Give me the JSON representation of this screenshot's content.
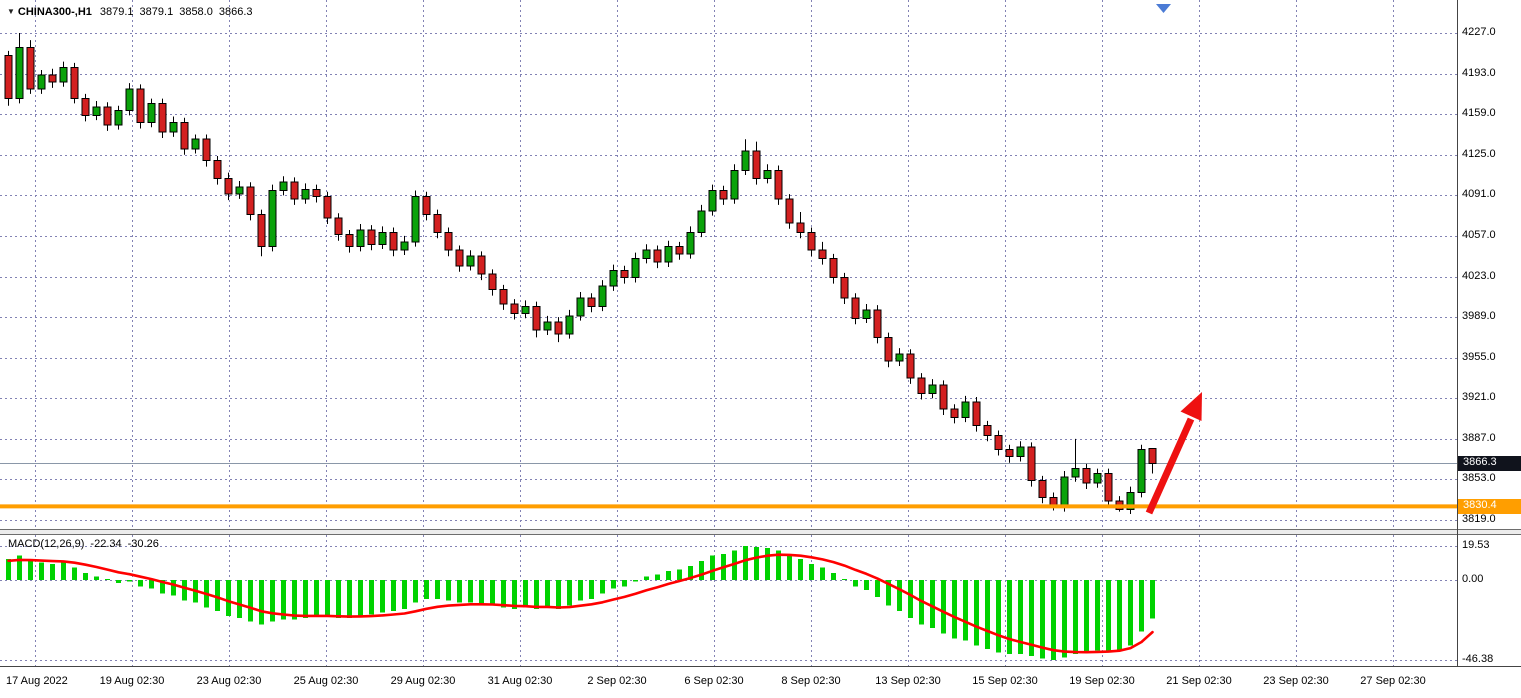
{
  "header": {
    "dropdown_icon": "▼",
    "symbol": "CHINA300-,H1",
    "open": "3879.1",
    "high": "3879.1",
    "low": "3858.0",
    "close": "3866.3"
  },
  "price_axis": {
    "current_price_badge": "3866.3",
    "orange_level_badge": "3830.4"
  },
  "macd_panel": {
    "label": "MACD(12,26,9)",
    "macd_value": "-22.34",
    "signal_value": "-30.26"
  },
  "colors": {
    "grid": "#8282b4",
    "bull": "#0aa20a",
    "bear": "#d32020",
    "wick": "#000000",
    "macd_hist": "#00d200",
    "macd_signal": "#ff0000",
    "orange_line": "#ff9e00",
    "current_price_line": "#8a97a8",
    "arrow": "#ee1111",
    "shift_marker": "#4b7bd5",
    "badge_current_bg": "#10131c",
    "badge_orange_bg": "#ff9e00",
    "separator": "#6d6d6d"
  },
  "chart_data": [
    {
      "type": "candlestick",
      "title": "CHINA300-,H1",
      "ylim": [
        3811,
        4255
      ],
      "yticks": [
        4227,
        4193,
        4159,
        4125,
        4091,
        4057,
        4023,
        3989,
        3955,
        3921,
        3887,
        3853,
        3819
      ],
      "ytick_labels": [
        "4227.0",
        "4193.0",
        "4159.0",
        "4125.0",
        "4091.0",
        "4057.0",
        "4023.0",
        "3989.0",
        "3955.0",
        "3921.0",
        "3887.0",
        "3853.0",
        "3819.0"
      ],
      "x_tick_labels": [
        "17 Aug 2022",
        "19 Aug 02:30",
        "23 Aug 02:30",
        "25 Aug 02:30",
        "29 Aug 02:30",
        "31 Aug 02:30",
        "2 Sep 02:30",
        "6 Sep 02:30",
        "8 Sep 02:30",
        "13 Sep 02:30",
        "15 Sep 02:30",
        "19 Sep 02:30",
        "21 Sep 02:30",
        "23 Sep 02:30",
        "27 Sep 02:30"
      ],
      "current_price": 3866.3,
      "support_line": 3830.4,
      "candles": [
        [
          4208,
          4212,
          4166,
          4172
        ],
        [
          4172,
          4227,
          4168,
          4215
        ],
        [
          4215,
          4221,
          4176,
          4180
        ],
        [
          4180,
          4196,
          4176,
          4192
        ],
        [
          4192,
          4197,
          4181,
          4186
        ],
        [
          4186,
          4203,
          4182,
          4198
        ],
        [
          4198,
          4202,
          4168,
          4172
        ],
        [
          4172,
          4176,
          4153,
          4158
        ],
        [
          4158,
          4170,
          4154,
          4165
        ],
        [
          4165,
          4169,
          4145,
          4150
        ],
        [
          4150,
          4166,
          4146,
          4162
        ],
        [
          4162,
          4185,
          4158,
          4180
        ],
        [
          4180,
          4184,
          4147,
          4152
        ],
        [
          4152,
          4172,
          4148,
          4168
        ],
        [
          4168,
          4172,
          4139,
          4144
        ],
        [
          4144,
          4157,
          4140,
          4152
        ],
        [
          4152,
          4156,
          4125,
          4130
        ],
        [
          4130,
          4142,
          4126,
          4138
        ],
        [
          4138,
          4142,
          4115,
          4120
        ],
        [
          4120,
          4124,
          4100,
          4105
        ],
        [
          4105,
          4110,
          4087,
          4092
        ],
        [
          4092,
          4103,
          4088,
          4098
        ],
        [
          4098,
          4102,
          4070,
          4075
        ],
        [
          4075,
          4079,
          4040,
          4048
        ],
        [
          4048,
          4100,
          4044,
          4095
        ],
        [
          4095,
          4107,
          4091,
          4102
        ],
        [
          4102,
          4106,
          4083,
          4088
        ],
        [
          4088,
          4101,
          4084,
          4096
        ],
        [
          4096,
          4100,
          4085,
          4090
        ],
        [
          4090,
          4094,
          4067,
          4072
        ],
        [
          4072,
          4076,
          4053,
          4058
        ],
        [
          4058,
          4062,
          4043,
          4048
        ],
        [
          4048,
          4067,
          4044,
          4062
        ],
        [
          4062,
          4066,
          4045,
          4050
        ],
        [
          4050,
          4065,
          4046,
          4060
        ],
        [
          4060,
          4064,
          4040,
          4045
        ],
        [
          4045,
          4057,
          4041,
          4052
        ],
        [
          4052,
          4095,
          4048,
          4090
        ],
        [
          4090,
          4094,
          4070,
          4075
        ],
        [
          4075,
          4079,
          4055,
          4060
        ],
        [
          4060,
          4064,
          4040,
          4045
        ],
        [
          4045,
          4049,
          4027,
          4032
        ],
        [
          4032,
          4045,
          4028,
          4040
        ],
        [
          4040,
          4044,
          4020,
          4025
        ],
        [
          4025,
          4029,
          4007,
          4012
        ],
        [
          4012,
          4016,
          3995,
          4000
        ],
        [
          4000,
          4004,
          3987,
          3992
        ],
        [
          3992,
          4003,
          3988,
          3998
        ],
        [
          3998,
          4002,
          3972,
          3978
        ],
        [
          3978,
          3990,
          3974,
          3985
        ],
        [
          3985,
          3989,
          3968,
          3975
        ],
        [
          3975,
          3995,
          3971,
          3990
        ],
        [
          3990,
          4010,
          3986,
          4005
        ],
        [
          4005,
          4009,
          3993,
          3998
        ],
        [
          3998,
          4020,
          3994,
          4015
        ],
        [
          4015,
          4033,
          4011,
          4028
        ],
        [
          4028,
          4032,
          4017,
          4022
        ],
        [
          4022,
          4043,
          4018,
          4038
        ],
        [
          4038,
          4050,
          4034,
          4045
        ],
        [
          4045,
          4049,
          4030,
          4035
        ],
        [
          4035,
          4053,
          4031,
          4048
        ],
        [
          4048,
          4052,
          4037,
          4042
        ],
        [
          4042,
          4065,
          4038,
          4060
        ],
        [
          4060,
          4083,
          4056,
          4078
        ],
        [
          4078,
          4100,
          4074,
          4095
        ],
        [
          4095,
          4099,
          4083,
          4088
        ],
        [
          4088,
          4117,
          4084,
          4112
        ],
        [
          4112,
          4138,
          4108,
          4128
        ],
        [
          4128,
          4136,
          4100,
          4105
        ],
        [
          4105,
          4117,
          4101,
          4112
        ],
        [
          4112,
          4116,
          4083,
          4088
        ],
        [
          4088,
          4092,
          4063,
          4068
        ],
        [
          4068,
          4077,
          4055,
          4060
        ],
        [
          4060,
          4064,
          4040,
          4045
        ],
        [
          4045,
          4052,
          4033,
          4038
        ],
        [
          4038,
          4042,
          4017,
          4022
        ],
        [
          4022,
          4026,
          4000,
          4005
        ],
        [
          4005,
          4009,
          3983,
          3988
        ],
        [
          3988,
          4000,
          3984,
          3995
        ],
        [
          3995,
          3999,
          3967,
          3972
        ],
        [
          3972,
          3976,
          3947,
          3952
        ],
        [
          3952,
          3963,
          3948,
          3958
        ],
        [
          3958,
          3962,
          3933,
          3938
        ],
        [
          3938,
          3942,
          3920,
          3925
        ],
        [
          3925,
          3937,
          3921,
          3932
        ],
        [
          3932,
          3936,
          3907,
          3912
        ],
        [
          3912,
          3916,
          3900,
          3905
        ],
        [
          3905,
          3923,
          3901,
          3918
        ],
        [
          3918,
          3922,
          3893,
          3898
        ],
        [
          3898,
          3902,
          3885,
          3890
        ],
        [
          3890,
          3894,
          3873,
          3878
        ],
        [
          3878,
          3882,
          3867,
          3872
        ],
        [
          3872,
          3885,
          3868,
          3880
        ],
        [
          3880,
          3884,
          3847,
          3852
        ],
        [
          3852,
          3856,
          3833,
          3838
        ],
        [
          3838,
          3842,
          3827,
          3830
        ],
        [
          3830,
          3860,
          3826,
          3855
        ],
        [
          3855,
          3887,
          3851,
          3862
        ],
        [
          3862,
          3866,
          3845,
          3850
        ],
        [
          3850,
          3862,
          3846,
          3858
        ],
        [
          3858,
          3862,
          3831,
          3835
        ],
        [
          3835,
          3839,
          3826,
          3828
        ],
        [
          3828,
          3847,
          3824,
          3842
        ],
        [
          3842,
          3882,
          3838,
          3878
        ],
        [
          3879.1,
          3879.1,
          3858.0,
          3866.3
        ]
      ]
    },
    {
      "type": "bar",
      "title": "MACD(12,26,9)",
      "yticks": [
        19.53,
        0,
        -46.38
      ],
      "ytick_labels": [
        "19.53",
        "0.00",
        "-46.38"
      ],
      "values": [
        12,
        14,
        11,
        10,
        9,
        10,
        7,
        4,
        2,
        0.5,
        -2,
        -1,
        -4,
        -5,
        -8,
        -9,
        -12,
        -13,
        -16,
        -18,
        -21,
        -22,
        -24,
        -26,
        -24,
        -23,
        -23,
        -22,
        -21,
        -21,
        -22,
        -22,
        -21,
        -20,
        -19,
        -18,
        -17,
        -13,
        -11,
        -11,
        -12,
        -13,
        -13,
        -14,
        -15,
        -16,
        -17,
        -16,
        -17,
        -16,
        -17,
        -15,
        -12,
        -11,
        -8,
        -5,
        -4,
        -1,
        2,
        3,
        5,
        6,
        8,
        11,
        14,
        15,
        17,
        19.5,
        19,
        18.5,
        17,
        14,
        12,
        9,
        7,
        4,
        0.5,
        -4,
        -6,
        -10,
        -15,
        -18,
        -22,
        -26,
        -28,
        -31,
        -34,
        -35,
        -38,
        -40,
        -42,
        -43,
        -43,
        -44,
        -45.5,
        -46.38,
        -45,
        -43,
        -42,
        -41,
        -41,
        -41,
        -38,
        -30,
        -22.34
      ],
      "signal": [
        11,
        11.5,
        11.4,
        11.1,
        10.8,
        10.6,
        9.9,
        8.7,
        7.4,
        5.9,
        4.3,
        3.2,
        1.8,
        0.4,
        -1.3,
        -2.8,
        -4.6,
        -6.3,
        -8.2,
        -10.2,
        -12.4,
        -14.3,
        -16.2,
        -18.2,
        -19.4,
        -20.1,
        -20.7,
        -20.9,
        -20.9,
        -20.9,
        -21.1,
        -21.3,
        -21.2,
        -21.0,
        -20.6,
        -20.1,
        -19.5,
        -18.2,
        -16.8,
        -15.6,
        -14.9,
        -14.5,
        -14.2,
        -14.2,
        -14.3,
        -14.7,
        -15.1,
        -15.3,
        -15.7,
        -15.7,
        -16.0,
        -15.8,
        -15.0,
        -14.2,
        -13.0,
        -11.4,
        -9.9,
        -8.1,
        -6.1,
        -4.3,
        -2.4,
        -0.7,
        1.0,
        3.0,
        5.2,
        7.2,
        9.2,
        11.3,
        12.8,
        13.9,
        14.5,
        14.4,
        13.9,
        13.0,
        11.8,
        10.2,
        8.2,
        5.7,
        3.4,
        0.7,
        -2.4,
        -5.5,
        -8.8,
        -12.3,
        -15.4,
        -18.5,
        -21.6,
        -24.3,
        -27.1,
        -29.6,
        -32.1,
        -34.3,
        -36.0,
        -37.6,
        -39.2,
        -40.7,
        -41.5,
        -41.8,
        -41.9,
        -41.7,
        -41.5,
        -41.0,
        -39.5,
        -36.0,
        -30.26
      ]
    }
  ]
}
